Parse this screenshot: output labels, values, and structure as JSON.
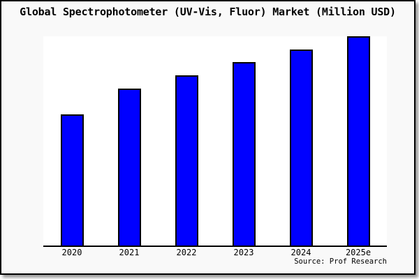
{
  "title": "Global Spectrophotometer (UV-Vis, Fluor) Market (Million USD)",
  "source_credit": "Source: Prof Research",
  "colors": {
    "bar_fill": "#0000ff",
    "bar_edge": "#000000",
    "plot_background": "#ffffff",
    "figure_background": "#f9f9f9",
    "frame_border": "#000000",
    "shadow": "#999999",
    "text": "#000000"
  },
  "chart_data": {
    "type": "bar",
    "title": "Global Spectrophotometer (UV-Vis, Fluor) Market (Million USD)",
    "categories": [
      "2020",
      "2021",
      "2022",
      "2023",
      "2024",
      "2025e"
    ],
    "values": [
      62.7,
      75.0,
      81.3,
      87.7,
      93.7,
      100.0
    ],
    "value_scale": "relative bar height as % of tallest (2025e) bar; chart shows no y-axis, gridlines or value labels",
    "xlabel": "",
    "ylabel": "",
    "ylim": [
      0,
      100
    ],
    "grid": false,
    "legend": false,
    "annotation": "Source: Prof Research"
  }
}
